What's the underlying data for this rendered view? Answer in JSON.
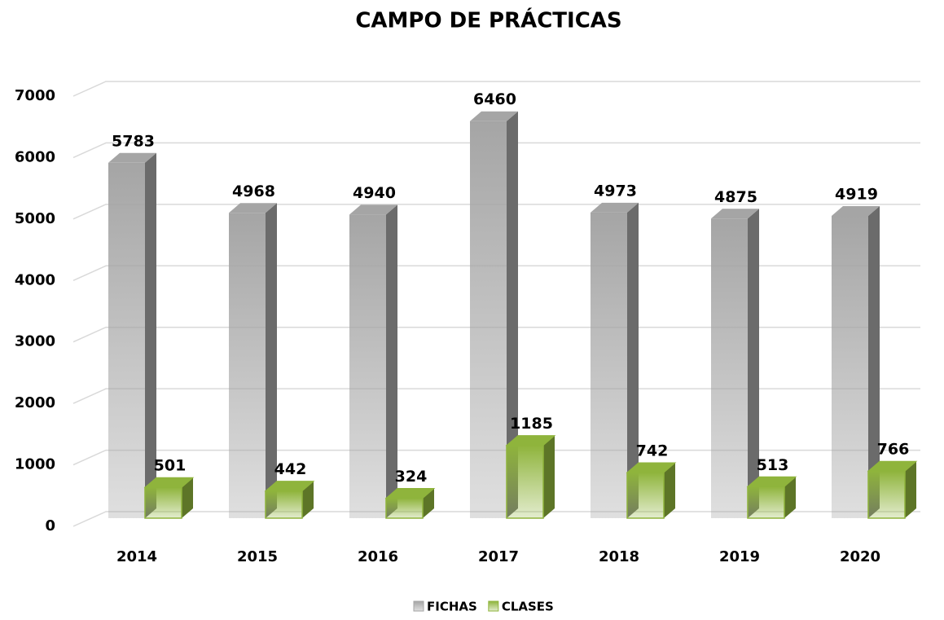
{
  "chart_data": {
    "type": "bar3d",
    "title": "CAMPO DE PRÁCTICAS",
    "categories": [
      "2014",
      "2015",
      "2016",
      "2017",
      "2018",
      "2019",
      "2020"
    ],
    "series": [
      {
        "name": "FICHAS",
        "color": "#a5a5a5",
        "values": [
          5783,
          4968,
          4940,
          6460,
          4973,
          4875,
          4919
        ]
      },
      {
        "name": "CLASES",
        "color": "#8fb43c",
        "values": [
          501,
          442,
          324,
          1185,
          742,
          513,
          766
        ]
      }
    ],
    "ylim": [
      0,
      7000
    ],
    "yticks": [
      0,
      1000,
      2000,
      3000,
      4000,
      5000,
      6000,
      7000
    ],
    "grid": true,
    "legend": "bottom"
  }
}
